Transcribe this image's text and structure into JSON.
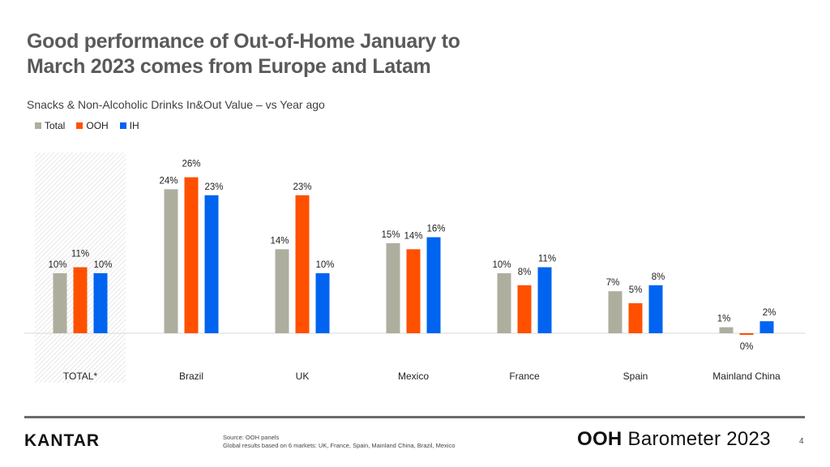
{
  "title_line1": "Good performance of Out-of-Home January to",
  "title_line2": "March 2023 comes from Europe and Latam",
  "subtitle": "Snacks & Non-Alcoholic Drinks In&Out Value – vs Year ago",
  "chart_data": {
    "type": "bar",
    "categories": [
      "TOTAL*",
      "Brazil",
      "UK",
      "Mexico",
      "France",
      "Spain",
      "Mainland China"
    ],
    "series": [
      {
        "name": "Total",
        "color": "#aeae9f",
        "values": [
          10,
          24,
          14,
          15,
          10,
          7,
          1
        ],
        "labels": [
          "10%",
          "24%",
          "14%",
          "15%",
          "10%",
          "7%",
          "1%"
        ]
      },
      {
        "name": "OOH",
        "color": "#ff5000",
        "values": [
          11,
          26,
          23,
          14,
          8,
          5,
          0
        ],
        "labels": [
          "11%",
          "26%",
          "23%",
          "14%",
          "8%",
          "5%",
          "0%"
        ]
      },
      {
        "name": "IH",
        "color": "#0064f0",
        "values": [
          10,
          23,
          10,
          16,
          11,
          8,
          2
        ],
        "labels": [
          "10%",
          "23%",
          "10%",
          "16%",
          "11%",
          "8%",
          "2%"
        ]
      }
    ],
    "unit": "%",
    "highlighted_category": "TOTAL*",
    "legend_position": "top-left"
  },
  "footer": {
    "logo": "KANTAR",
    "source_line1": "Source: OOH panels",
    "source_line2": "Global results based on 6 markets: UK, France, Spain, Mainland China, Brazil, Mexico",
    "brand_bold": "OOH",
    "brand_rest": " Barometer 2023",
    "page_number": "4"
  }
}
